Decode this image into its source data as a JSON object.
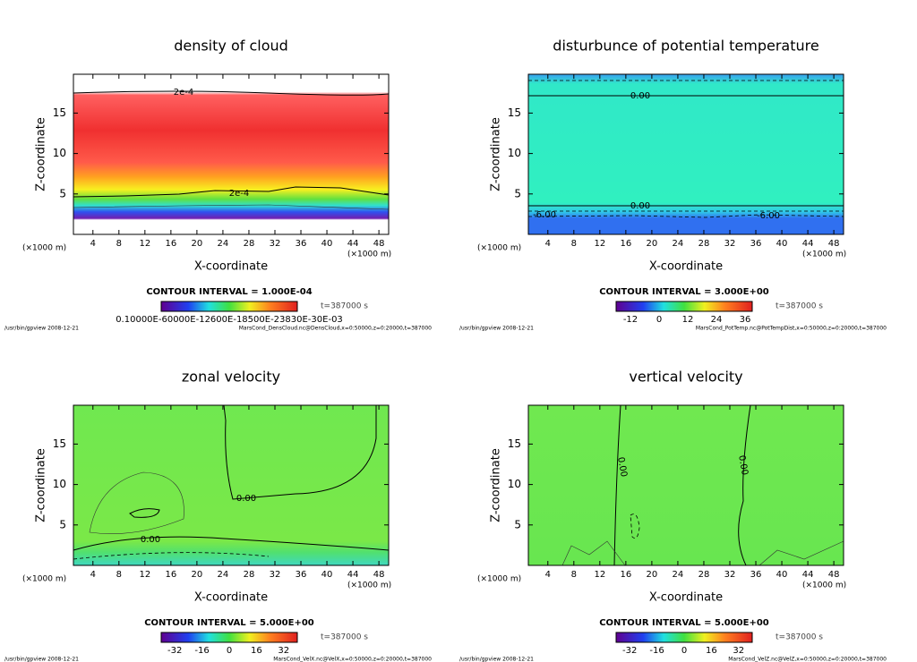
{
  "chart_data": [
    {
      "type": "contour",
      "title": "density of cloud",
      "x_label": "X-coordinate",
      "y_label": "Z-coordinate",
      "unit": "(×1000 m)",
      "xlim": [
        1,
        49.5
      ],
      "ylim": [
        0,
        19.8
      ],
      "xticks": [
        4,
        8,
        12,
        16,
        20,
        24,
        28,
        32,
        36,
        40,
        44,
        48
      ],
      "yticks": [
        5,
        10,
        15
      ],
      "interval": "CONTOUR INTERVAL = 1.000E-04",
      "time": "t=387000 s",
      "cbar_label": "0.10000E-60000E-12600E-18500E-23830E-30E-03",
      "contour_labels": [
        "2e-4",
        "2e-4"
      ],
      "footer_left": "/usr/bin/gpview   2008-12-21",
      "footer_right": "MarsCond_DensCloud.nc@DensCloud,x=0:50000,z=0:20000,t=387000"
    },
    {
      "type": "contour",
      "title": "disturbunce of potential temperature",
      "x_label": "X-coordinate",
      "y_label": "Z-coordinate",
      "unit": "(×1000 m)",
      "xlim": [
        1,
        49.5
      ],
      "ylim": [
        0,
        19.8
      ],
      "xticks": [
        4,
        8,
        12,
        16,
        20,
        24,
        28,
        32,
        36,
        40,
        44,
        48
      ],
      "yticks": [
        5,
        10,
        15
      ],
      "interval": "CONTOUR INTERVAL = 3.000E+00",
      "time": "t=387000 s",
      "cbar_lim": [
        -18,
        39
      ],
      "cbar_ticks": [
        -12,
        0,
        12,
        24,
        36
      ],
      "contour_labels": [
        "0.00",
        "0.00",
        "-6.00",
        "-6.00"
      ],
      "footer_left": "/usr/bin/gpview   2008-12-21",
      "footer_right": "MarsCond_PotTemp.nc@PotTempDist,x=0:50000,z=0:20000,t=387000"
    },
    {
      "type": "contour",
      "title": "zonal velocity",
      "x_label": "X-coordinate",
      "y_label": "Z-coordinate",
      "unit": "(×1000 m)",
      "xlim": [
        1,
        49.5
      ],
      "ylim": [
        0,
        19.8
      ],
      "xticks": [
        4,
        8,
        12,
        16,
        20,
        24,
        28,
        32,
        36,
        40,
        44,
        48
      ],
      "yticks": [
        5,
        10,
        15
      ],
      "interval": "CONTOUR INTERVAL = 5.000E+00",
      "time": "t=387000 s",
      "cbar_lim": [
        -40,
        40
      ],
      "cbar_ticks": [
        -32,
        -16,
        0,
        16,
        32
      ],
      "contour_labels": [
        "0.00",
        "0.00"
      ],
      "footer_left": "/usr/bin/gpview   2008-12-21",
      "footer_right": "MarsCond_VelX.nc@VelX,x=0:50000,z=0:20000,t=387000"
    },
    {
      "type": "contour",
      "title": "vertical velocity",
      "x_label": "X-coordinate",
      "y_label": "Z-coordinate",
      "unit": "(×1000 m)",
      "xlim": [
        1,
        49.5
      ],
      "ylim": [
        0,
        19.8
      ],
      "xticks": [
        4,
        8,
        12,
        16,
        20,
        24,
        28,
        32,
        36,
        40,
        44,
        48
      ],
      "yticks": [
        5,
        10,
        15
      ],
      "interval": "CONTOUR INTERVAL = 5.000E+00",
      "time": "t=387000 s",
      "cbar_lim": [
        -40,
        40
      ],
      "cbar_ticks": [
        -32,
        -16,
        0,
        16,
        32
      ],
      "contour_labels": [
        "0.00",
        "0.00"
      ],
      "footer_left": "/usr/bin/gpview   2008-12-21",
      "footer_right": "MarsCond_VelZ.nc@VelZ,x=0:50000,z=0:20000,t=387000"
    }
  ]
}
